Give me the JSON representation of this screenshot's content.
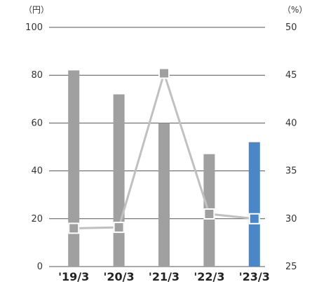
{
  "chart_data": {
    "type": "bar",
    "categories": [
      "'19/3",
      "'20/3",
      "'21/3",
      "'22/3",
      "'23/3"
    ],
    "series": [
      {
        "type": "bar",
        "axis": "left",
        "values": [
          82,
          72,
          60,
          47,
          52
        ],
        "colors": [
          "#a0a0a0",
          "#a0a0a0",
          "#a0a0a0",
          "#a0a0a0",
          "#4a86c8"
        ]
      },
      {
        "type": "line",
        "axis": "right",
        "values": [
          29.0,
          29.1,
          45.2,
          30.5,
          30.0
        ],
        "line_color": "#c0c0c0",
        "marker_color": "#a0a0a0",
        "highlight_marker_color": "#4a86c8"
      }
    ],
    "y_left": {
      "unit": "（円）",
      "ticks": [
        0,
        20,
        40,
        60,
        80,
        100
      ],
      "lim": [
        0,
        100
      ]
    },
    "y_right": {
      "unit": "（%）",
      "ticks": [
        25,
        30,
        35,
        40,
        45,
        50
      ],
      "lim": [
        25,
        50
      ]
    },
    "grid": true,
    "gridline_color": "#555555"
  }
}
